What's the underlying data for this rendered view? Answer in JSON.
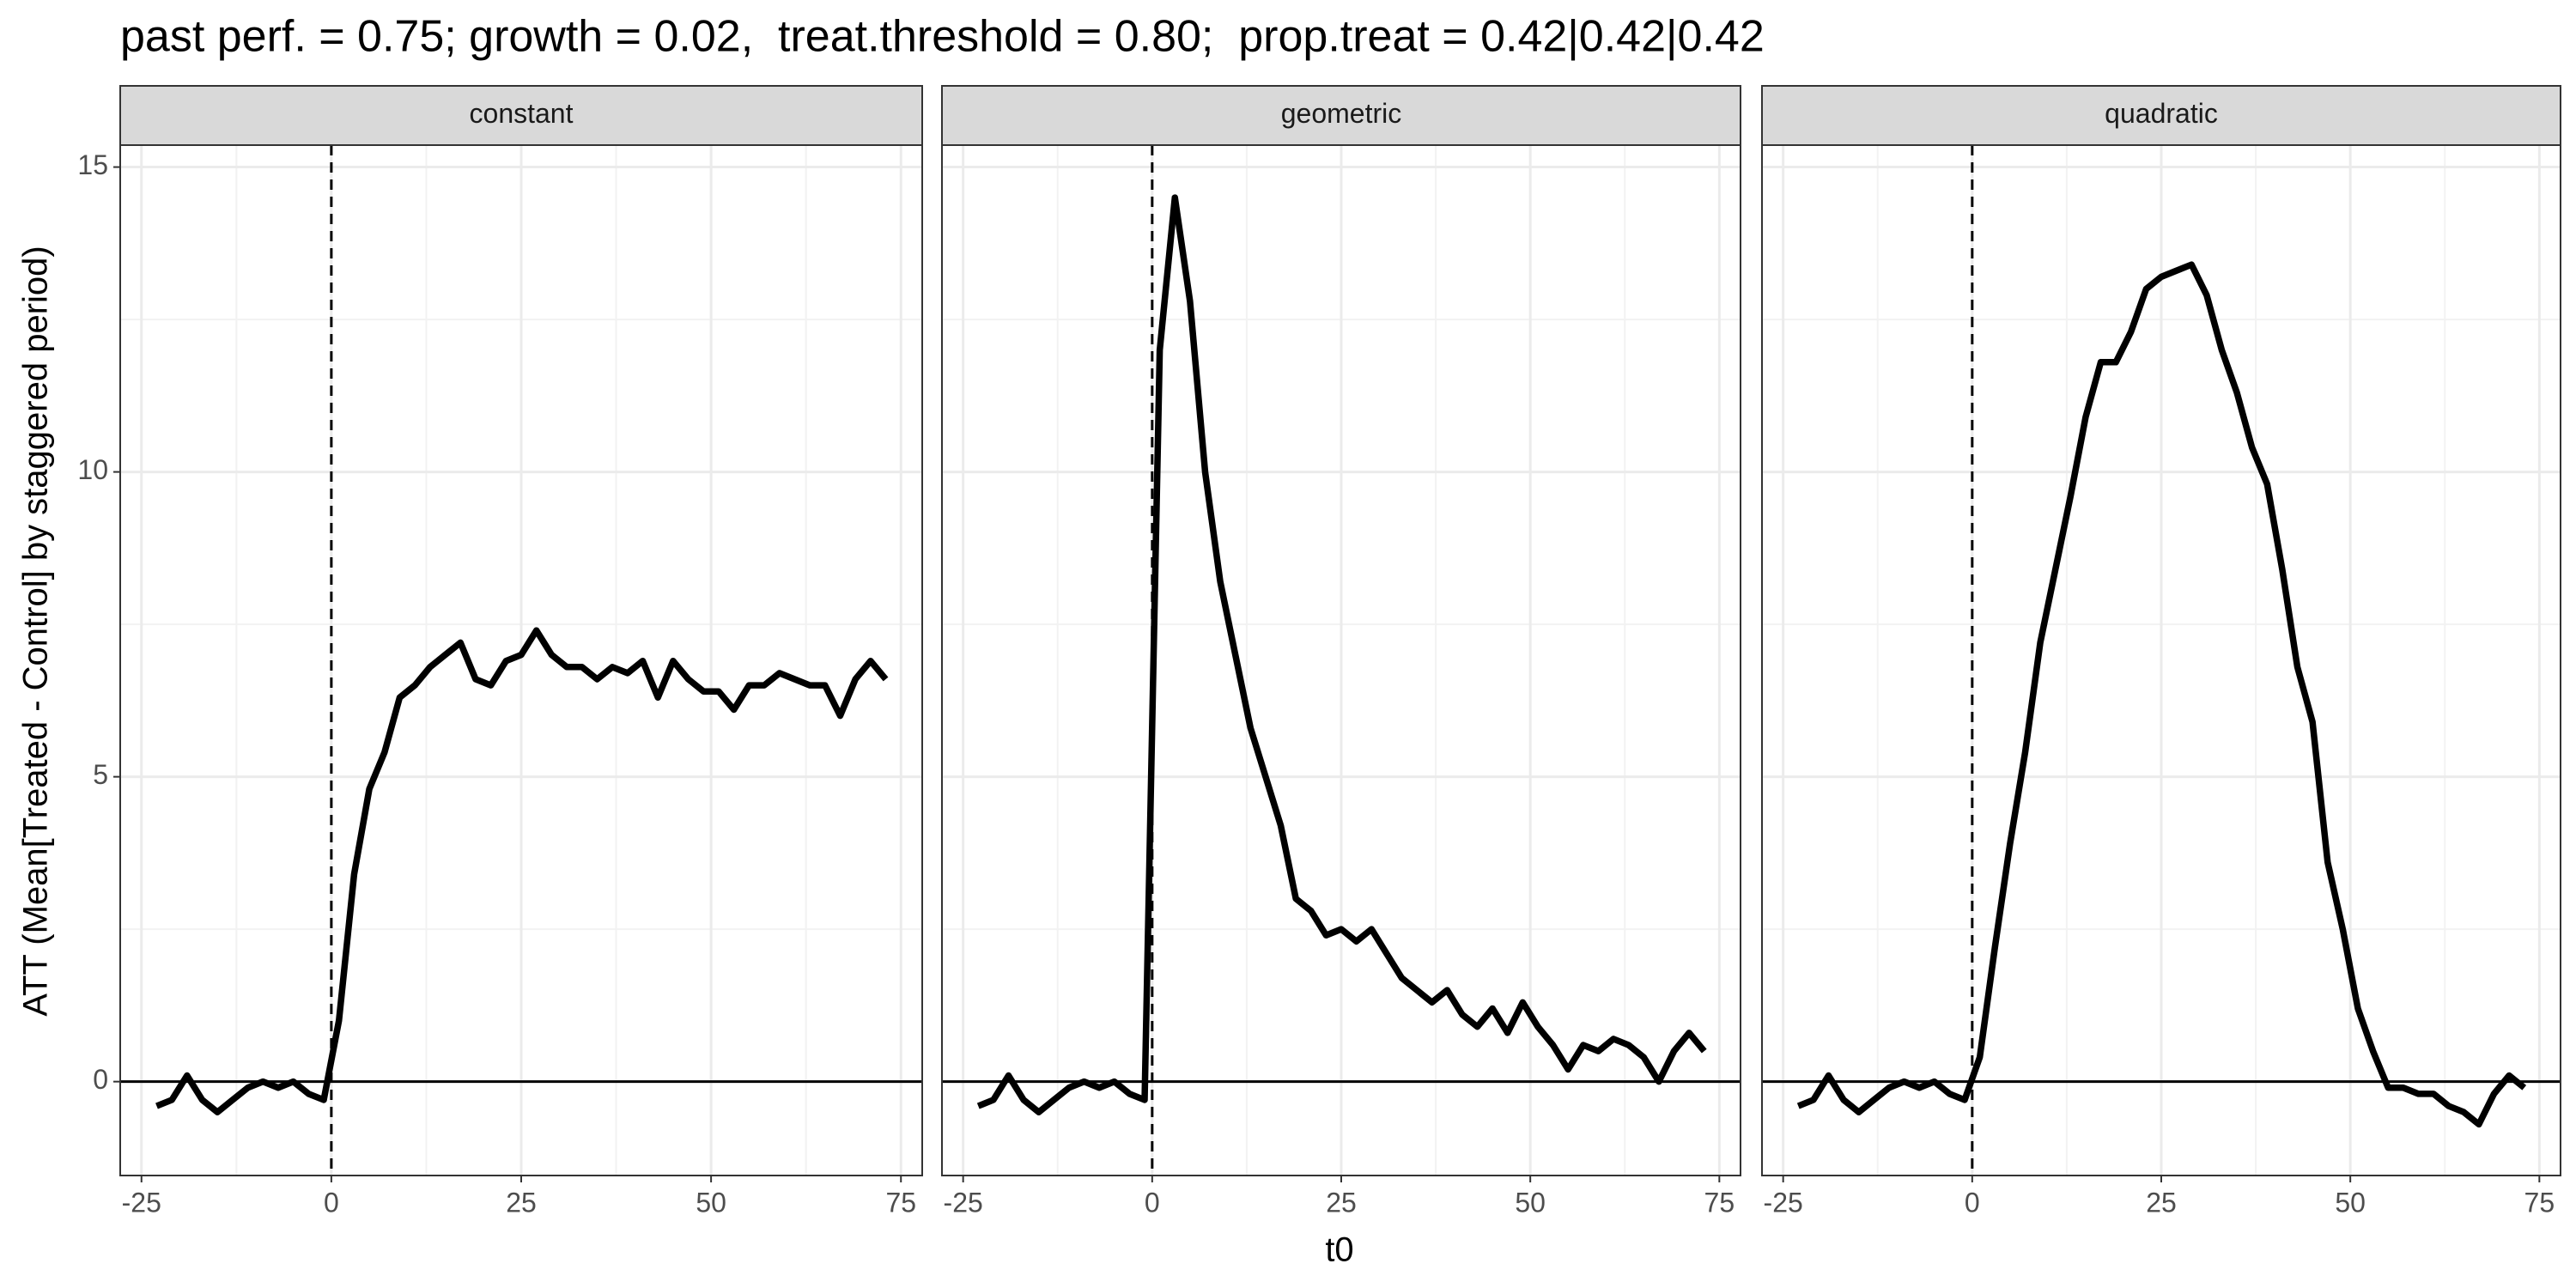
{
  "title": "past perf. = 0.75; growth = 0.02,  treat.threshold = 0.80;  prop.treat = 0.42|0.42|0.42",
  "x_label": "t0",
  "y_label": "ATT (Mean[Treated - Control] by staggered period)",
  "chart_data": [
    {
      "type": "line",
      "title": "constant",
      "color": "#000000",
      "grid": true,
      "hline": 0,
      "vline": 0,
      "xlim": [
        -27.8,
        77.8
      ],
      "ylim": [
        -1.54,
        15.36
      ],
      "xticks": [
        -25,
        0,
        25,
        50,
        75
      ],
      "yticks": [
        0,
        5,
        10,
        15
      ],
      "x": [
        -23,
        -21,
        -19,
        -17,
        -15,
        -13,
        -11,
        -9,
        -7,
        -5,
        -3,
        -1,
        1,
        3,
        5,
        7,
        9,
        11,
        13,
        15,
        17,
        19,
        21,
        23,
        25,
        27,
        29,
        31,
        33,
        35,
        37,
        39,
        41,
        43,
        45,
        47,
        49,
        51,
        53,
        55,
        57,
        59,
        61,
        63,
        65,
        67,
        69,
        71,
        73
      ],
      "values": [
        -0.4,
        -0.3,
        0.1,
        -0.3,
        -0.5,
        -0.3,
        -0.1,
        0.0,
        -0.1,
        0.0,
        -0.2,
        -0.3,
        1.0,
        3.4,
        4.8,
        5.4,
        6.3,
        6.5,
        6.8,
        7.0,
        7.2,
        6.6,
        6.5,
        6.9,
        7.0,
        7.4,
        7.0,
        6.8,
        6.8,
        6.6,
        6.8,
        6.7,
        6.9,
        6.3,
        6.9,
        6.6,
        6.4,
        6.4,
        6.1,
        6.5,
        6.5,
        6.7,
        6.6,
        6.5,
        6.5,
        6.0,
        6.6,
        6.9,
        6.6
      ]
    },
    {
      "type": "line",
      "title": "geometric",
      "color": "#000000",
      "grid": true,
      "hline": 0,
      "vline": 0,
      "xlim": [
        -27.8,
        77.8
      ],
      "ylim": [
        -1.54,
        15.36
      ],
      "xticks": [
        -25,
        0,
        25,
        50,
        75
      ],
      "yticks": [
        0,
        5,
        10,
        15
      ],
      "x": [
        -23,
        -21,
        -19,
        -17,
        -15,
        -13,
        -11,
        -9,
        -7,
        -5,
        -3,
        -1,
        1,
        3,
        5,
        7,
        9,
        11,
        13,
        15,
        17,
        19,
        21,
        23,
        25,
        27,
        29,
        31,
        33,
        35,
        37,
        39,
        41,
        43,
        45,
        47,
        49,
        51,
        53,
        55,
        57,
        59,
        61,
        63,
        65,
        67,
        69,
        71,
        73
      ],
      "values": [
        -0.4,
        -0.3,
        0.1,
        -0.3,
        -0.5,
        -0.3,
        -0.1,
        0.0,
        -0.1,
        0.0,
        -0.2,
        -0.3,
        12.0,
        14.5,
        12.8,
        10.0,
        8.2,
        7.0,
        5.8,
        5.0,
        4.2,
        3.0,
        2.8,
        2.4,
        2.5,
        2.3,
        2.5,
        2.1,
        1.7,
        1.5,
        1.3,
        1.5,
        1.1,
        0.9,
        1.2,
        0.8,
        1.3,
        0.9,
        0.6,
        0.2,
        0.6,
        0.5,
        0.7,
        0.6,
        0.4,
        0.0,
        0.5,
        0.8,
        0.5
      ]
    },
    {
      "type": "line",
      "title": "quadratic",
      "color": "#000000",
      "grid": true,
      "hline": 0,
      "vline": 0,
      "xlim": [
        -27.8,
        77.8
      ],
      "ylim": [
        -1.54,
        15.36
      ],
      "xticks": [
        -25,
        0,
        25,
        50,
        75
      ],
      "yticks": [
        0,
        5,
        10,
        15
      ],
      "x": [
        -23,
        -21,
        -19,
        -17,
        -15,
        -13,
        -11,
        -9,
        -7,
        -5,
        -3,
        -1,
        1,
        3,
        5,
        7,
        9,
        11,
        13,
        15,
        17,
        19,
        21,
        23,
        25,
        27,
        29,
        31,
        33,
        35,
        37,
        39,
        41,
        43,
        45,
        47,
        49,
        51,
        53,
        55,
        57,
        59,
        61,
        63,
        65,
        67,
        69,
        71,
        73
      ],
      "values": [
        -0.4,
        -0.3,
        0.1,
        -0.3,
        -0.5,
        -0.3,
        -0.1,
        0.0,
        -0.1,
        0.0,
        -0.2,
        -0.3,
        0.4,
        2.2,
        3.9,
        5.4,
        7.2,
        8.4,
        9.6,
        10.9,
        11.8,
        11.8,
        12.3,
        13.0,
        13.2,
        13.3,
        13.4,
        12.9,
        12.0,
        11.3,
        10.4,
        9.8,
        8.4,
        6.8,
        5.9,
        3.6,
        2.5,
        1.2,
        0.5,
        -0.1,
        -0.1,
        -0.2,
        -0.2,
        -0.4,
        -0.5,
        -0.7,
        -0.2,
        0.1,
        -0.1
      ]
    }
  ]
}
